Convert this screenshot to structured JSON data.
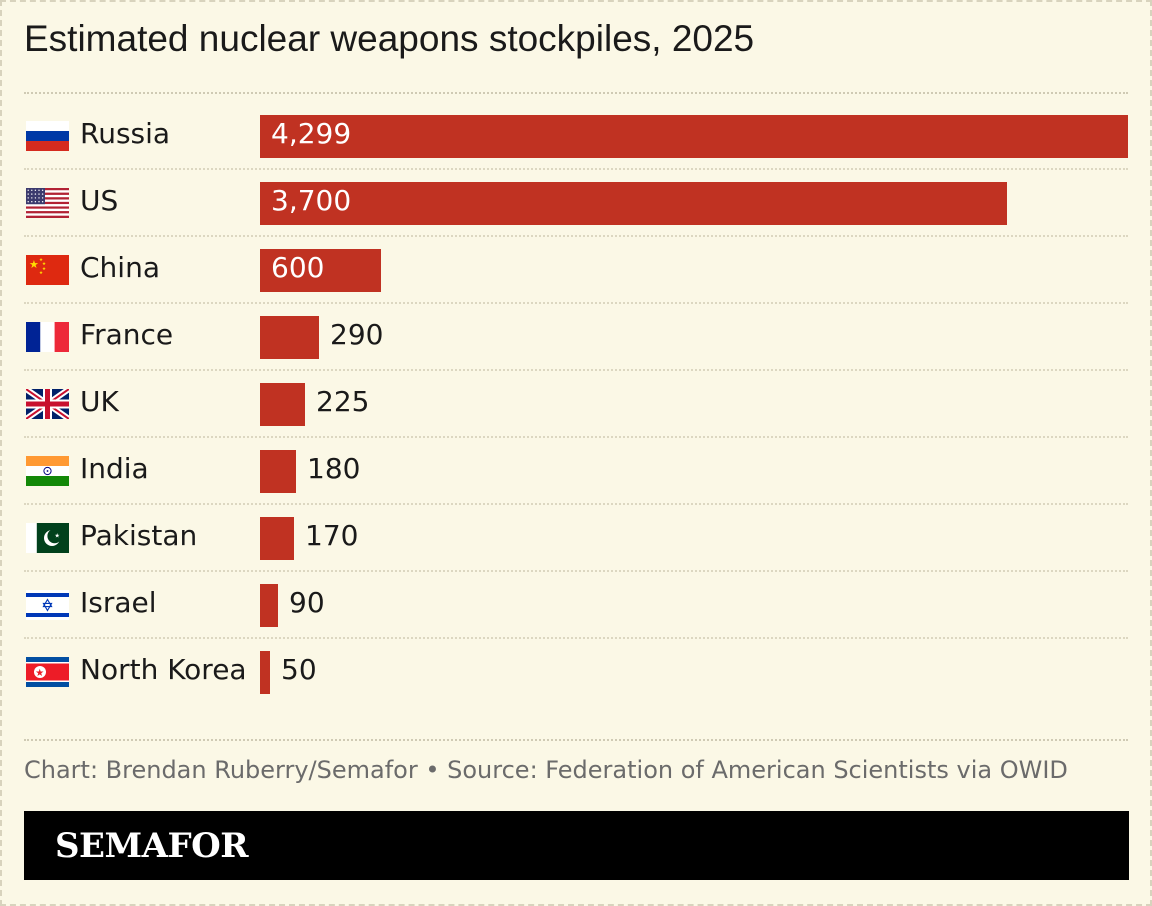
{
  "title": "Estimated nuclear weapons stockpiles, 2025",
  "footnote": "Chart: Brendan Ruberry/Semafor • Source: Federation of American Scientists via OWID",
  "brand": "SEMAFOR",
  "colors": {
    "bar": "#c03222",
    "background": "#fbf8e6",
    "brandbar": "#000000"
  },
  "chart_data": {
    "type": "bar",
    "orientation": "horizontal",
    "title": "Estimated nuclear weapons stockpiles, 2025",
    "categories": [
      "Russia",
      "US",
      "China",
      "France",
      "UK",
      "India",
      "Pakistan",
      "Israel",
      "North Korea"
    ],
    "values": [
      4299,
      3700,
      600,
      290,
      225,
      180,
      170,
      90,
      50
    ],
    "labels": [
      "4,299",
      "3,700",
      "600",
      "290",
      "225",
      "180",
      "170",
      "90",
      "50"
    ],
    "flags": [
      "russia-flag-icon",
      "us-flag-icon",
      "china-flag-icon",
      "france-flag-icon",
      "uk-flag-icon",
      "india-flag-icon",
      "pakistan-flag-icon",
      "israel-flag-icon",
      "north-korea-flag-icon"
    ],
    "xlim": [
      0,
      4299
    ],
    "grid": false,
    "legend": "none"
  }
}
